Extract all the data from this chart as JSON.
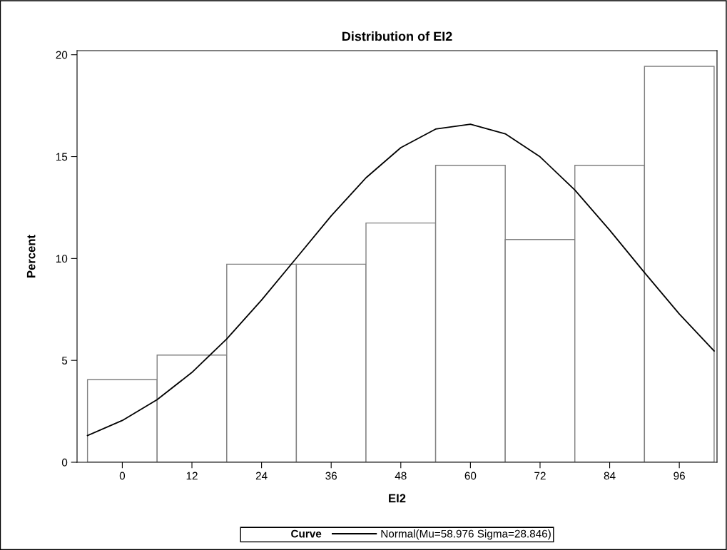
{
  "chart_data": {
    "type": "histogram",
    "title": "Distribution of EI2",
    "xlabel": "EI2",
    "ylabel": "Percent",
    "bins": [
      -6,
      6,
      18,
      30,
      42,
      54,
      66,
      78,
      90,
      102
    ],
    "values": [
      4.05,
      5.26,
      9.72,
      9.72,
      11.74,
      14.57,
      10.93,
      14.57,
      19.43
    ],
    "color": "#ffffff",
    "series": [
      {
        "type": "line",
        "name": "Normal(Mu=58.976 Sigma=28.846)",
        "color": "#000000",
        "line_style": "solid",
        "x": [
          -6,
          0,
          6,
          12,
          18,
          24,
          30,
          36,
          42,
          48,
          54,
          60,
          66,
          72,
          78,
          84,
          90,
          96,
          102
        ],
        "values": [
          1.31,
          2.05,
          3.07,
          4.41,
          6.05,
          7.96,
          10.02,
          12.09,
          13.96,
          15.44,
          16.35,
          16.59,
          16.12,
          14.99,
          13.36,
          11.39,
          9.31,
          7.28,
          5.46
        ]
      }
    ],
    "legend_title": "Curve",
    "legend": "bottom",
    "xlim": [
      -7.8,
      102.5
    ],
    "xticks": [
      0,
      12,
      24,
      36,
      48,
      60,
      72,
      84,
      96
    ],
    "ylim": [
      0,
      20.2
    ],
    "yticks": [
      0,
      5,
      10,
      15,
      20
    ],
    "grid": false
  }
}
